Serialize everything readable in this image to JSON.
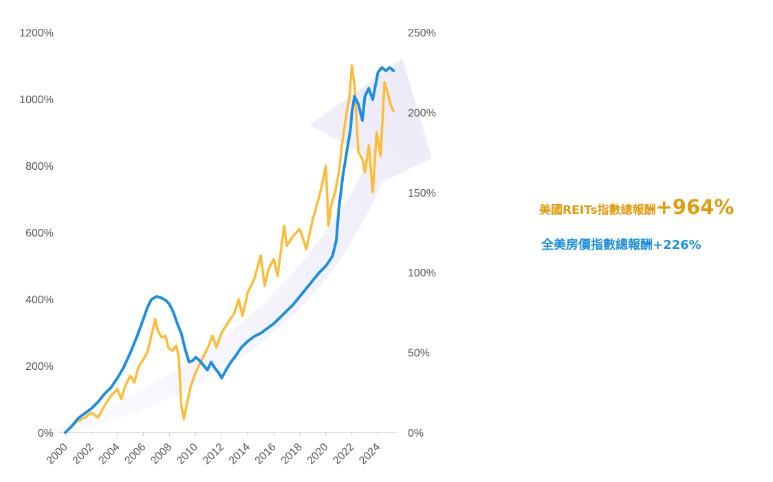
{
  "chart_data": {
    "type": "line",
    "x_ticks": [
      "2000",
      "2002",
      "2004",
      "2006",
      "2008",
      "2010",
      "2012",
      "2014",
      "2016",
      "2018",
      "2020",
      "2022",
      "2024"
    ],
    "y_left_ticks": [
      "0%",
      "200%",
      "400%",
      "600%",
      "800%",
      "1000%",
      "1200%"
    ],
    "y_right_ticks": [
      "0%",
      "50%",
      "100%",
      "150%",
      "200%",
      "250%"
    ],
    "y_left_lim": [
      0,
      1200
    ],
    "y_right_lim": [
      0,
      250
    ],
    "x_lim": [
      2000,
      2025.5
    ],
    "grid": false,
    "legend": "none",
    "series": [
      {
        "name": "美國REITs指數總報酬",
        "axis": "left",
        "color": "#ffbb33",
        "x": [
          2000.0,
          2000.5,
          2001.0,
          2001.5,
          2002.0,
          2002.5,
          2003.0,
          2003.5,
          2004.0,
          2004.3,
          2004.6,
          2005.0,
          2005.3,
          2005.6,
          2006.0,
          2006.3,
          2006.6,
          2006.9,
          2007.1,
          2007.4,
          2007.7,
          2007.9,
          2008.2,
          2008.5,
          2008.7,
          2008.9,
          2009.1,
          2009.3,
          2009.6,
          2010.0,
          2010.5,
          2011.0,
          2011.3,
          2011.6,
          2012.0,
          2012.5,
          2013.0,
          2013.3,
          2013.6,
          2014.0,
          2014.5,
          2015.0,
          2015.3,
          2015.6,
          2016.0,
          2016.3,
          2016.6,
          2016.8,
          2017.0,
          2017.5,
          2018.0,
          2018.5,
          2019.0,
          2019.5,
          2019.8,
          2020.0,
          2020.2,
          2020.4,
          2020.7,
          2021.0,
          2021.3,
          2021.6,
          2021.8,
          2022.0,
          2022.2,
          2022.5,
          2022.8,
          2023.0,
          2023.3,
          2023.6,
          2023.9,
          2024.2,
          2024.5,
          2024.8,
          2025.0,
          2025.2
        ],
        "values": [
          0,
          20,
          35,
          45,
          60,
          45,
          80,
          110,
          130,
          100,
          140,
          170,
          150,
          195,
          220,
          240,
          290,
          340,
          305,
          285,
          290,
          255,
          245,
          260,
          230,
          80,
          40,
          80,
          135,
          180,
          220,
          260,
          290,
          255,
          300,
          330,
          360,
          400,
          350,
          420,
          460,
          530,
          440,
          490,
          520,
          470,
          560,
          620,
          560,
          590,
          610,
          550,
          640,
          710,
          760,
          800,
          620,
          680,
          720,
          780,
          880,
          960,
          1000,
          1100,
          1040,
          840,
          820,
          780,
          860,
          720,
          900,
          830,
          1050,
          1010,
          980,
          964
        ]
      },
      {
        "name": "全美房價指數總報酬",
        "axis": "right",
        "color": "#1a8fe0",
        "x": [
          2000.0,
          2000.5,
          2001.0,
          2001.5,
          2002.0,
          2002.5,
          2003.0,
          2003.5,
          2004.0,
          2004.5,
          2005.0,
          2005.5,
          2006.0,
          2006.3,
          2006.6,
          2007.0,
          2007.4,
          2007.8,
          2008.0,
          2008.3,
          2008.6,
          2008.9,
          2009.2,
          2009.5,
          2009.8,
          2010.0,
          2010.3,
          2010.6,
          2010.9,
          2011.2,
          2011.5,
          2011.8,
          2012.0,
          2012.4,
          2012.8,
          2013.0,
          2013.5,
          2014.0,
          2014.5,
          2015.0,
          2015.5,
          2016.0,
          2016.5,
          2017.0,
          2017.5,
          2018.0,
          2018.5,
          2019.0,
          2019.5,
          2020.0,
          2020.5,
          2020.8,
          2021.0,
          2021.3,
          2021.6,
          2021.9,
          2022.0,
          2022.2,
          2022.5,
          2022.8,
          2023.0,
          2023.3,
          2023.6,
          2024.0,
          2024.3,
          2024.6,
          2024.9,
          2025.2
        ],
        "values": [
          0,
          4,
          9,
          12,
          15,
          19,
          24,
          28,
          34,
          41,
          50,
          60,
          71,
          78,
          83,
          85,
          84,
          82,
          80,
          75,
          68,
          62,
          52,
          44,
          45,
          47,
          45,
          42,
          39,
          44,
          40,
          37,
          34,
          40,
          45,
          47,
          53,
          57,
          60,
          62,
          65,
          68,
          72,
          76,
          80,
          85,
          90,
          95,
          100,
          104,
          110,
          120,
          140,
          160,
          175,
          190,
          200,
          210,
          205,
          195,
          210,
          215,
          208,
          225,
          228,
          226,
          228,
          226
        ]
      }
    ],
    "annotations": [
      {
        "series": "美國REITs指數總報酬",
        "label": "美國REITs指數總報酬",
        "value": "+964%"
      },
      {
        "series": "全美房價指數總報酬",
        "label": "全美房價指數總報酬",
        "value": "+226%"
      }
    ]
  },
  "labels": {
    "reits_text": "美國REITs指數總報酬",
    "reits_value": "+964%",
    "house_text": "全美房價指數總報酬+226%"
  },
  "colors": {
    "reits": "#ffbb33",
    "house": "#1a8fe0",
    "reits_label": "#e39a0c",
    "trend_arrow": "#f0eef9",
    "axis": "#bbbbbb"
  }
}
